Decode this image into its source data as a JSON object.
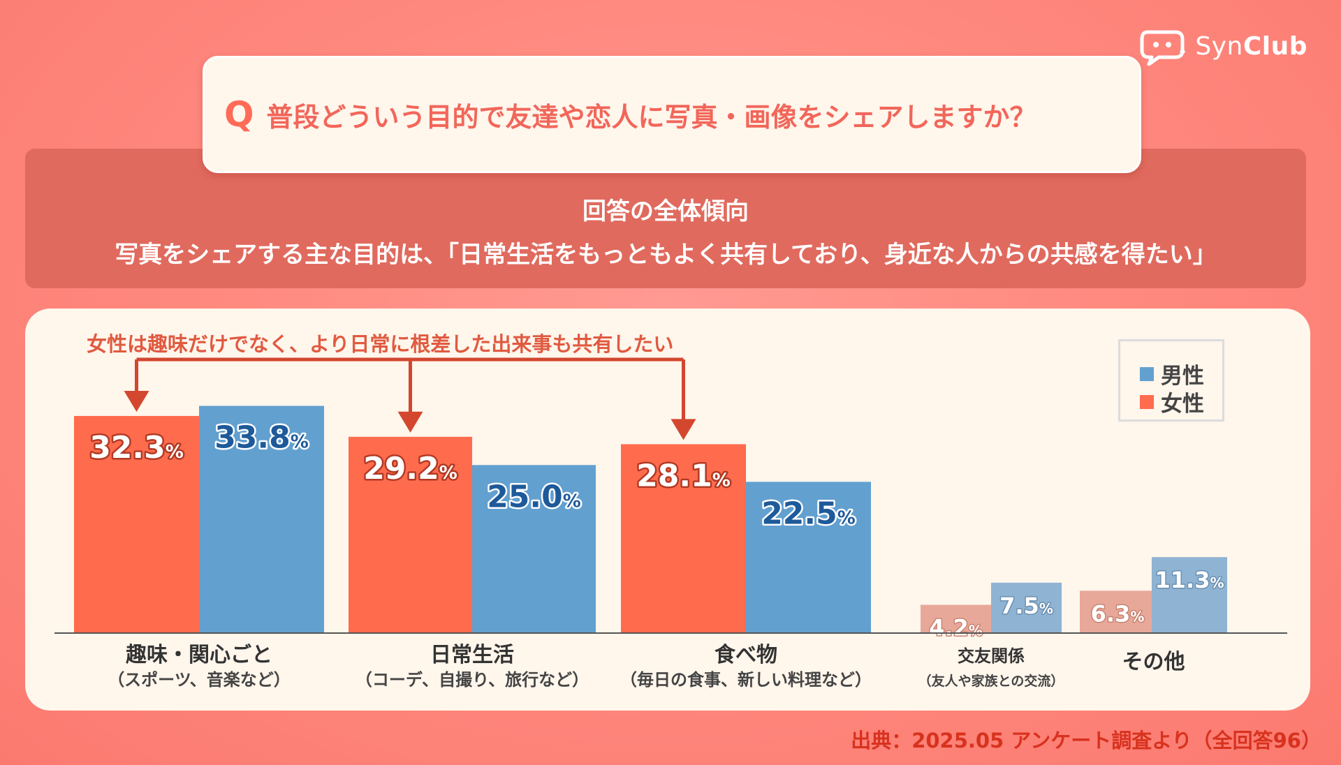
{
  "brand": {
    "prefix": "Syn",
    "suffix": "Club"
  },
  "question": {
    "mark": "Q",
    "text": "普段どういう目的で友達や恋人に写真・画像をシェアしますか？"
  },
  "summary": {
    "title": "回答の全体傾向",
    "body": "写真をシェアする主な目的は、「日常生活をもっともよく共有しており、身近な人からの共感を得たい」"
  },
  "annotation": "女性は趣味だけでなく、より日常に根差した出来事も共有したい",
  "source": "出典：2025.05 アンケート調査より（全回答96）",
  "colors": {
    "female": "#ff6b4d",
    "male": "#62a0d0",
    "female_muted": "#e7a89a",
    "male_muted": "#8fb3d2"
  },
  "chart_data": {
    "type": "bar",
    "unit": "%",
    "categories": [
      {
        "name": "趣味・関心ごと",
        "sub": "（スポーツ、音楽など）"
      },
      {
        "name": "日常生活",
        "sub": "（コーデ、自撮り、旅行など）"
      },
      {
        "name": "食べ物",
        "sub": "（毎日の食事、新しい料理など）"
      },
      {
        "name": "交友関係",
        "sub": "（友人や家族との交流）"
      },
      {
        "name": "その他",
        "sub": ""
      }
    ],
    "series": [
      {
        "name": "女性",
        "values": [
          32.3,
          29.2,
          28.1,
          4.2,
          6.3
        ]
      },
      {
        "name": "男性",
        "values": [
          33.8,
          25.0,
          22.5,
          7.5,
          11.3
        ]
      }
    ],
    "legend": {
      "position": "top-right",
      "order": [
        "男性",
        "女性"
      ]
    },
    "grid": false
  }
}
